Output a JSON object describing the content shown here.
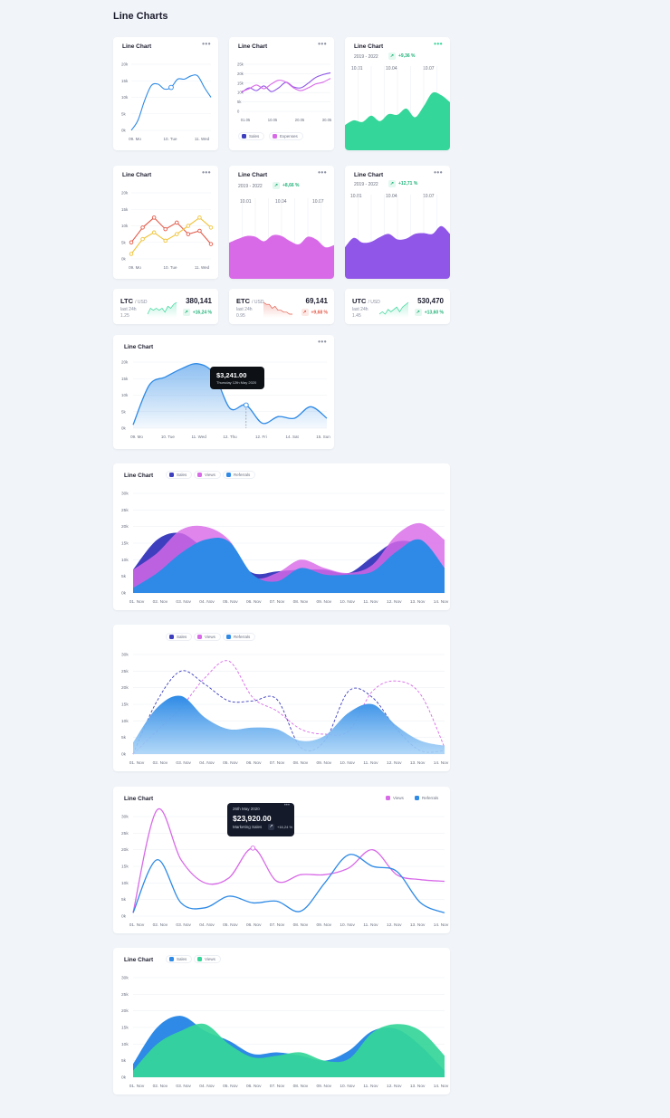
{
  "page": {
    "title": "Line Charts"
  },
  "colors": {
    "blue": "#2e8ae6",
    "lightblue": "#a9d3f7",
    "purple": "#8f56e8",
    "magenta": "#d86ae8",
    "navy": "#3e3fbf",
    "green": "#35d699",
    "red": "#e35b4a",
    "yellow": "#f0c43a",
    "accent_green": "#22b37a",
    "accent_red": "#e35b4a"
  },
  "menu_icon": "more-dots-icon",
  "cards": {
    "c1": {
      "title": "Line Chart",
      "menu": "•••"
    },
    "c2": {
      "title": "Line Chart",
      "menu": "•••",
      "legend": [
        "Sales",
        "Expenses"
      ]
    },
    "c3": {
      "title": "Line Chart",
      "menu": "•••",
      "range": "2019 - 2022",
      "change": "+9,36 %",
      "dates": [
        "10.01",
        "10.04",
        "10.07"
      ]
    },
    "c4": {
      "title": "Line Chart",
      "menu": "•••"
    },
    "c5": {
      "title": "Line Chart",
      "menu": "•••",
      "range": "2019 - 2022",
      "change": "+8,66 %",
      "dates": [
        "10.01",
        "10.04",
        "10.07"
      ]
    },
    "c6": {
      "title": "Line Chart",
      "menu": "•••",
      "range": "2019 - 2022",
      "change": "+12,71 %",
      "dates": [
        "10.01",
        "10.04",
        "10.07"
      ]
    },
    "c7": {
      "title": "Line Chart",
      "menu": "•••",
      "tooltip": {
        "value": "$3,241.00",
        "date": "Thursday 12th May 2020"
      }
    },
    "c8": {
      "title": "Line Chart",
      "legend": [
        "Sales",
        "Views",
        "Referrals"
      ]
    },
    "c9": {
      "legend": [
        "Sales",
        "Views",
        "Referrals"
      ]
    },
    "c10": {
      "title": "Line Chart",
      "legend": [
        "Views",
        "Referrals"
      ],
      "tooltip": {
        "date": "26th May 2020",
        "value": "$23,920.00",
        "label": "Marketing Sales",
        "change": "+16,24 %",
        "menu": "•••"
      }
    },
    "c11": {
      "title": "Line Chart",
      "legend": [
        "Sales",
        "Views"
      ]
    }
  },
  "tickers": [
    {
      "name": "LTC",
      "unit": "/ USD",
      "sub1": "last 24h",
      "sub2": "1.25",
      "value": "380,141",
      "change": "+16,24 %",
      "up": true
    },
    {
      "name": "ETC",
      "unit": "/ USD",
      "sub1": "last 24h",
      "sub2": "0.95",
      "value": "69,141",
      "change": "+9,68 %",
      "up": false
    },
    {
      "name": "UTC",
      "unit": "/ USD",
      "sub1": "last 24h",
      "sub2": "1.45",
      "value": "530,470",
      "change": "+13,60 %",
      "up": true
    }
  ],
  "chart_data": [
    {
      "id": "c1",
      "type": "line",
      "ylim": [
        0,
        20000
      ],
      "yticks": [
        "20k",
        "15k",
        "10k",
        "5k",
        "0k"
      ],
      "xticks": [
        "09. Mo",
        "10. Tue",
        "11. Wed"
      ],
      "x": [
        0,
        0.5,
        1,
        1.5,
        2,
        2.5,
        3,
        3.5,
        4,
        4.5,
        5,
        5.5,
        6
      ],
      "series": [
        {
          "color": "blue",
          "values": [
            0,
            3000,
            9000,
            13500,
            14000,
            12500,
            13000,
            15500,
            15500,
            16500,
            16500,
            13000,
            10000
          ]
        }
      ],
      "marker_index": 6
    },
    {
      "id": "c2",
      "type": "line",
      "ylim": [
        0,
        25000
      ],
      "yticks": [
        "25k",
        "20k",
        "15k",
        "10k",
        "5k",
        "0"
      ],
      "xticks": [
        "01.05",
        "10.05",
        "20.05",
        "30.05"
      ],
      "x": [
        0,
        1,
        2,
        3,
        4,
        5,
        6,
        7,
        8,
        9,
        10,
        11,
        12
      ],
      "series": [
        {
          "name": "Sales",
          "color": "purple",
          "values": [
            10000,
            12500,
            11000,
            13500,
            10500,
            12500,
            15500,
            13000,
            12500,
            15000,
            18000,
            19500,
            20500
          ]
        },
        {
          "name": "Expenses",
          "color": "magenta",
          "values": [
            10500,
            12000,
            14000,
            12000,
            14500,
            16500,
            15500,
            12500,
            11000,
            12500,
            14500,
            15500,
            17500
          ]
        }
      ]
    },
    {
      "id": "c3",
      "type": "area",
      "ylim": [
        0,
        100
      ],
      "x": [
        0,
        1,
        2,
        3,
        4,
        5,
        6,
        7,
        8,
        9,
        10,
        11,
        12
      ],
      "series": [
        {
          "color": "green",
          "values": [
            32,
            38,
            36,
            44,
            37,
            46,
            45,
            53,
            42,
            56,
            73,
            70,
            61
          ]
        }
      ]
    },
    {
      "id": "c4",
      "type": "line",
      "ylim": [
        0,
        20000
      ],
      "yticks": [
        "20k",
        "15k",
        "10k",
        "5k",
        "0k"
      ],
      "xticks": [
        "09. Mo",
        "10. Tue",
        "11. Wed"
      ],
      "x": [
        0,
        1,
        2,
        3,
        4,
        5,
        6,
        7
      ],
      "series": [
        {
          "color": "red",
          "values": [
            5000,
            9500,
            12500,
            9000,
            11000,
            7500,
            8500,
            4500
          ]
        },
        {
          "color": "yellow",
          "values": [
            1500,
            6000,
            8000,
            5500,
            7500,
            10000,
            12500,
            9500
          ]
        }
      ]
    },
    {
      "id": "c5",
      "type": "area",
      "ylim": [
        0,
        100
      ],
      "x": [
        0,
        1,
        2,
        3,
        4,
        5,
        6,
        7,
        8,
        9,
        10,
        11,
        12
      ],
      "series": [
        {
          "color": "magenta",
          "values": [
            48,
            53,
            57,
            56,
            50,
            58,
            57,
            50,
            46,
            56,
            52,
            42,
            45
          ]
        }
      ]
    },
    {
      "id": "c6",
      "type": "area",
      "ylim": [
        0,
        100
      ],
      "x": [
        0,
        1,
        2,
        3,
        4,
        5,
        6,
        7,
        8,
        9,
        10,
        11,
        12
      ],
      "series": [
        {
          "color": "purple",
          "values": [
            40,
            52,
            46,
            47,
            53,
            57,
            50,
            51,
            57,
            58,
            57,
            67,
            57
          ]
        }
      ]
    },
    {
      "id": "c7",
      "type": "area",
      "ylim": [
        0,
        20000
      ],
      "yticks": [
        "20k",
        "15k",
        "10k",
        "5k",
        "0k"
      ],
      "xticks": [
        "09. Mo",
        "10. Tue",
        "11. Wed",
        "12. Thu",
        "12. Fri",
        "14. Sat",
        "15. Sun"
      ],
      "x": [
        0,
        0.5,
        1,
        1.5,
        2,
        2.5,
        3,
        3.5,
        4,
        4.5,
        5,
        5.5,
        6
      ],
      "series": [
        {
          "color": "blue",
          "values": [
            1000,
            13000,
            15500,
            18000,
            19500,
            16500,
            6000,
            7000,
            1500,
            3500,
            3000,
            6500,
            3000
          ]
        }
      ],
      "marker_index": 7
    },
    {
      "id": "c8",
      "type": "area",
      "ylim": [
        0,
        30000
      ],
      "yticks": [
        "30k",
        "25k",
        "20k",
        "15k",
        "10k",
        "5k",
        "0k"
      ],
      "xticks": [
        "01. Nov",
        "02. Nov",
        "03. Nov",
        "04. Nov",
        "05. Nov",
        "06. Nov",
        "07. Nov",
        "08. Nov",
        "09. Nov",
        "10. Nov",
        "11. Nov",
        "12. Nov",
        "13. Nov",
        "14. Nov"
      ],
      "x": [
        0,
        1,
        2,
        3,
        4,
        5,
        6,
        7,
        8,
        9,
        10,
        11,
        12,
        13
      ],
      "series": [
        {
          "name": "Sales",
          "color": "navy",
          "values": [
            7000,
            16000,
            18000,
            13500,
            12000,
            6000,
            6500,
            7000,
            7000,
            6000,
            11000,
            15500,
            14000,
            5000
          ]
        },
        {
          "name": "Views",
          "color": "magenta",
          "values": [
            7000,
            12000,
            19000,
            20000,
            16000,
            5000,
            6000,
            10000,
            7500,
            6000,
            8500,
            17500,
            21000,
            16000
          ]
        },
        {
          "name": "Referrals",
          "color": "blue",
          "values": [
            1500,
            6000,
            12000,
            16000,
            15500,
            5500,
            3500,
            7500,
            5500,
            5500,
            6500,
            12500,
            16000,
            7500
          ]
        }
      ]
    },
    {
      "id": "c9",
      "type": "area",
      "ylim": [
        0,
        30000
      ],
      "yticks": [
        "30k",
        "25k",
        "20k",
        "15k",
        "10k",
        "5k",
        "0k"
      ],
      "xticks": [
        "01. Nov",
        "02. Nov",
        "03. Nov",
        "04. Nov",
        "05. Nov",
        "06. Nov",
        "07. Nov",
        "08. Nov",
        "09. Nov",
        "10. Nov",
        "11. Nov",
        "12. Nov",
        "13. Nov",
        "14. Nov"
      ],
      "x": [
        0,
        1,
        2,
        3,
        4,
        5,
        6,
        7,
        8,
        9,
        10,
        11,
        12,
        13
      ],
      "series": [
        {
          "name": "Sales",
          "color": "navy",
          "values": [
            0,
            16000,
            25000,
            21000,
            16000,
            16000,
            16500,
            2000,
            4000,
            19000,
            17000,
            7500,
            1000,
            1000
          ]
        },
        {
          "name": "Views",
          "color": "magenta",
          "values": [
            0,
            7000,
            14000,
            23000,
            28000,
            17000,
            13000,
            7500,
            6000,
            7000,
            19000,
            22000,
            18000,
            2000
          ]
        },
        {
          "name": "Referrals",
          "color": "blue",
          "values": [
            3500,
            14000,
            17500,
            11000,
            7500,
            8000,
            7500,
            4000,
            5500,
            12500,
            15000,
            8500,
            4000,
            2500
          ]
        }
      ]
    },
    {
      "id": "c10",
      "type": "line",
      "ylim": [
        0,
        30000
      ],
      "yticks": [
        "30k",
        "25k",
        "20k",
        "15k",
        "10k",
        "5k",
        "0k"
      ],
      "xticks": [
        "01. Nov",
        "02. Nov",
        "03. Nov",
        "04. Nov",
        "05. Nov",
        "06. Nov",
        "07. Nov",
        "08. Nov",
        "09. Nov",
        "10. Nov",
        "11. Nov",
        "12. Nov",
        "13. Nov",
        "14. Nov"
      ],
      "x": [
        0,
        1,
        2,
        3,
        4,
        5,
        6,
        7,
        8,
        9,
        10,
        11,
        12,
        13
      ],
      "series": [
        {
          "name": "Views",
          "color": "magenta",
          "values": [
            1000,
            32000,
            17000,
            10000,
            11500,
            20500,
            10500,
            12500,
            12500,
            14500,
            20000,
            12500,
            11000,
            10500
          ]
        },
        {
          "name": "Referrals",
          "color": "blue",
          "values": [
            1000,
            17000,
            4000,
            2500,
            6000,
            4000,
            4500,
            1500,
            10000,
            18500,
            15000,
            13500,
            4000,
            1000
          ]
        }
      ],
      "marker": {
        "series": 0,
        "index": 5
      }
    },
    {
      "id": "c11",
      "type": "area",
      "ylim": [
        0,
        30000
      ],
      "yticks": [
        "30k",
        "25k",
        "20k",
        "15k",
        "10k",
        "5k",
        "0k"
      ],
      "xticks": [
        "01. Nov",
        "02. Nov",
        "03. Nov",
        "04. Nov",
        "05. Nov",
        "06. Nov",
        "07. Nov",
        "08. Nov",
        "09. Nov",
        "10. Nov",
        "11. Nov",
        "12. Nov",
        "13. Nov",
        "14. Nov"
      ],
      "x": [
        0,
        1,
        2,
        3,
        4,
        5,
        6,
        7,
        8,
        9,
        10,
        11,
        12,
        13
      ],
      "series": [
        {
          "name": "Sales",
          "color": "blue",
          "values": [
            4000,
            15000,
            18500,
            14000,
            11000,
            7000,
            7500,
            6500,
            5000,
            8000,
            14000,
            14500,
            9500,
            2000
          ]
        },
        {
          "name": "Views",
          "color": "green",
          "values": [
            2000,
            10000,
            14000,
            16000,
            10000,
            6000,
            6500,
            7500,
            5000,
            5500,
            13500,
            16000,
            14000,
            6500
          ]
        }
      ]
    }
  ],
  "sparklines": [
    {
      "color": "green",
      "values": [
        3,
        6,
        5,
        6,
        5,
        6,
        4,
        7,
        6,
        8,
        9
      ]
    },
    {
      "color": "red",
      "values": [
        9,
        8,
        8,
        6,
        7,
        5,
        5,
        4,
        4,
        3,
        3
      ]
    },
    {
      "color": "green",
      "values": [
        3,
        4,
        3,
        5,
        4,
        5,
        6,
        4,
        6,
        7,
        8
      ]
    }
  ]
}
